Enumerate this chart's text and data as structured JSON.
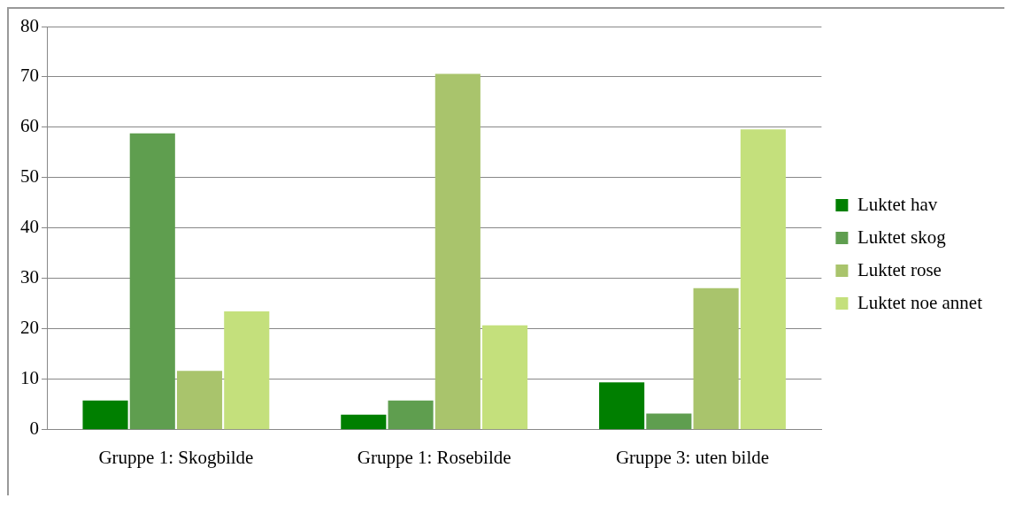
{
  "chart_data": {
    "type": "bar",
    "categories": [
      "Gruppe 1: Skogbilde",
      "Gruppe 1: Rosebilde",
      "Gruppe 3: uten bilde"
    ],
    "series": [
      {
        "name": "Luktet hav",
        "color": "#007f00",
        "values": [
          5.8,
          3.0,
          9.4
        ]
      },
      {
        "name": "Luktet skog",
        "color": "#5f9e4f",
        "values": [
          58.8,
          5.8,
          3.2
        ]
      },
      {
        "name": "Luktet rose",
        "color": "#a9c46c",
        "values": [
          11.7,
          70.6,
          28.1
        ]
      },
      {
        "name": "Luktet noe annet",
        "color": "#c4e07c",
        "values": [
          23.5,
          20.7,
          59.6
        ]
      }
    ],
    "ylim": [
      0,
      80
    ],
    "yticks": [
      0,
      10,
      20,
      30,
      40,
      50,
      60,
      70,
      80
    ],
    "grid": "y",
    "legend": "right"
  }
}
